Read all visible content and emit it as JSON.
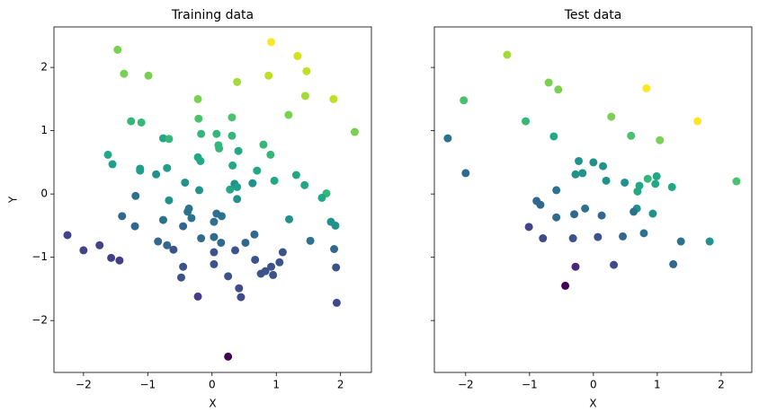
{
  "chart_data": [
    {
      "type": "scatter",
      "title": "Training data",
      "x_label": "X",
      "y_label": "Y",
      "xlim": [
        -2.46,
        2.48
      ],
      "ylim": [
        -2.82,
        2.64
      ],
      "xticks": [
        {
          "value": -2,
          "label": "−2"
        },
        {
          "value": -1,
          "label": "−1"
        },
        0,
        1,
        2
      ],
      "yticks": [
        {
          "value": -2,
          "label": "−2"
        },
        {
          "value": -1,
          "label": "−1"
        },
        0,
        1,
        2
      ],
      "ytick_labels": true,
      "x": [
        -1.47,
        0.92,
        1.33,
        1.47,
        -1.37,
        -0.99,
        0.39,
        0.88,
        -0.22,
        1.45,
        1.89,
        1.19,
        -1.26,
        -1.1,
        -0.21,
        0.31,
        2.22,
        -0.76,
        -0.67,
        -0.17,
        0.07,
        0.31,
        0.8,
        0.1,
        0.11,
        0.41,
        -1.62,
        0.91,
        -1.55,
        -1.12,
        -1.12,
        -0.7,
        -0.87,
        -0.22,
        -0.18,
        0.32,
        0.7,
        1.31,
        -0.42,
        0.35,
        0.39,
        0.63,
        0.97,
        1.44,
        -0.2,
        0.28,
        1.78,
        1.71,
        -1.19,
        -0.67,
        0.39,
        -1.4,
        0.07,
        0.15,
        0.03,
        -0.32,
        -0.76,
        -0.36,
        -0.38,
        1.2,
        -1.2,
        -0.45,
        1.85,
        1.92,
        0.03,
        -0.17,
        1.53,
        -0.84,
        -0.7,
        -0.6,
        0.14,
        0.52,
        0.66,
        0.36,
        0.03,
        1.1,
        -2.25,
        -2.0,
        -1.75,
        1.9,
        -1.57,
        -1.44,
        0.67,
        1.05,
        -0.45,
        0.03,
        0.92,
        1.93,
        0.83,
        0.76,
        0.95,
        -0.48,
        0.25,
        0.42,
        -0.22,
        0.45,
        1.94,
        0.25
      ],
      "values": [
        2.28,
        2.4,
        2.18,
        1.94,
        1.9,
        1.87,
        1.77,
        1.87,
        1.5,
        1.55,
        1.5,
        1.25,
        1.15,
        1.13,
        1.19,
        1.21,
        0.98,
        0.88,
        0.87,
        0.95,
        0.95,
        0.92,
        0.78,
        0.77,
        0.72,
        0.68,
        0.62,
        0.62,
        0.47,
        0.4,
        0.37,
        0.41,
        0.31,
        0.58,
        0.52,
        0.45,
        0.37,
        0.3,
        0.18,
        0.16,
        0.11,
        0.17,
        0.21,
        0.14,
        0.06,
        0.07,
        0.01,
        -0.06,
        -0.03,
        -0.1,
        -0.08,
        -0.35,
        -0.31,
        -0.35,
        -0.44,
        -0.38,
        -0.41,
        -0.23,
        -0.28,
        -0.4,
        -0.51,
        -0.51,
        -0.44,
        -0.5,
        -0.68,
        -0.7,
        -0.74,
        -0.75,
        -0.81,
        -0.88,
        -0.77,
        -0.77,
        -0.64,
        -0.89,
        -0.92,
        -0.92,
        -0.65,
        -0.89,
        -0.81,
        -0.87,
        -1.01,
        -1.05,
        -1.04,
        -1.08,
        -1.15,
        -1.11,
        -1.15,
        -1.16,
        -1.22,
        -1.26,
        -1.28,
        -1.32,
        -1.3,
        -1.49,
        -1.62,
        -1.63,
        -1.72,
        -2.57
      ],
      "colors": [
        "#7ad151",
        "#fde725",
        "#d2e21b",
        "#bddf26",
        "#7ad151",
        "#7ad151",
        "#a5db36",
        "#bddf26",
        "#7ad151",
        "#a5db36",
        "#c2df23",
        "#7ad151",
        "#35b779",
        "#35b779",
        "#4ac16d",
        "#4ac16d",
        "#7ad151",
        "#22a884",
        "#35b779",
        "#35b779",
        "#35b779",
        "#35b779",
        "#35b779",
        "#35b779",
        "#35b779",
        "#22a884",
        "#22a884",
        "#35b779",
        "#1f9e89",
        "#1f9e89",
        "#1f9e89",
        "#1f9e89",
        "#21918c",
        "#22a884",
        "#22a884",
        "#22a884",
        "#22a884",
        "#22a884",
        "#21918c",
        "#21918c",
        "#1f9e89",
        "#21918c",
        "#22a884",
        "#22a884",
        "#21918c",
        "#22a884",
        "#35b779",
        "#22a884",
        "#2c728e",
        "#21918c",
        "#21918c",
        "#31688e",
        "#2c728e",
        "#2c728e",
        "#2c728e",
        "#2c728e",
        "#2c728e",
        "#2c728e",
        "#2c728e",
        "#21918c",
        "#31688e",
        "#31688e",
        "#21918c",
        "#21918c",
        "#31688e",
        "#31688e",
        "#2c728e",
        "#31688e",
        "#31688e",
        "#3b528b",
        "#31688e",
        "#31688e",
        "#31688e",
        "#3b528b",
        "#3b528b",
        "#3b528b",
        "#414487",
        "#414487",
        "#414487",
        "#31688e",
        "#433e85",
        "#433e85",
        "#3b528b",
        "#3b528b",
        "#3b528b",
        "#3b528b",
        "#3b528b",
        "#3b528b",
        "#3b528b",
        "#3b528b",
        "#3b528b",
        "#3b528b",
        "#3b528b",
        "#3e4a89",
        "#433e85",
        "#3e4a89",
        "#3e4a89",
        "#440154"
      ]
    },
    {
      "type": "scatter",
      "title": "Test data",
      "x_label": "X",
      "xlim": [
        -2.49,
        2.48
      ],
      "ylim": [
        -2.82,
        2.64
      ],
      "xticks": [
        {
          "value": -2,
          "label": "−2"
        },
        {
          "value": -1,
          "label": "−1"
        },
        0,
        1,
        2
      ],
      "yticks": [
        -2,
        -1,
        0,
        1,
        2
      ],
      "ytick_labels": false,
      "x": [
        -1.35,
        -2.03,
        -0.7,
        -0.55,
        0.83,
        -1.06,
        0.28,
        1.63,
        -2.28,
        -0.62,
        0.59,
        1.04,
        -2.0,
        -0.23,
        0.0,
        0.15,
        -0.28,
        -0.17,
        0.2,
        0.49,
        0.72,
        0.85,
        0.99,
        0.97,
        1.23,
        2.24,
        -0.58,
        0.69,
        -0.89,
        -0.83,
        -0.13,
        0.68,
        0.63,
        -0.3,
        0.13,
        0.93,
        -0.58,
        -1.01,
        0.79,
        1.37,
        1.82,
        -0.79,
        -0.32,
        0.07,
        0.46,
        -0.28,
        0.32,
        1.25,
        -0.44
      ],
      "values": [
        2.2,
        1.48,
        1.76,
        1.65,
        1.67,
        1.15,
        1.22,
        1.15,
        0.88,
        0.91,
        0.92,
        0.85,
        0.33,
        0.52,
        0.5,
        0.44,
        0.31,
        0.33,
        0.21,
        0.18,
        0.13,
        0.24,
        0.28,
        0.16,
        0.11,
        0.2,
        0.06,
        0.04,
        -0.11,
        -0.17,
        -0.23,
        -0.23,
        -0.28,
        -0.32,
        -0.34,
        -0.31,
        -0.37,
        -0.52,
        -0.62,
        -0.75,
        -0.75,
        -0.7,
        -0.7,
        -0.68,
        -0.67,
        -1.15,
        -1.12,
        -1.11,
        -1.45
      ],
      "colors": [
        "#a5db36",
        "#4ac16d",
        "#7ad151",
        "#7ad151",
        "#fde725",
        "#35b779",
        "#7ad151",
        "#fde725",
        "#2c728e",
        "#22a884",
        "#4ac16d",
        "#7ad151",
        "#31688e",
        "#21918c",
        "#21918c",
        "#21918c",
        "#21918c",
        "#21918c",
        "#21918c",
        "#21918c",
        "#22a884",
        "#35b779",
        "#22a884",
        "#22a884",
        "#22a884",
        "#4ac16d",
        "#2c728e",
        "#22a884",
        "#31688e",
        "#31688e",
        "#2c728e",
        "#21918c",
        "#2c728e",
        "#31688e",
        "#31688e",
        "#21918c",
        "#31688e",
        "#414487",
        "#2c728e",
        "#2c728e",
        "#21918c",
        "#3e4a89",
        "#3b528b",
        "#3b528b",
        "#31688e",
        "#482878",
        "#3e4a89",
        "#31688e",
        "#440154"
      ]
    }
  ]
}
